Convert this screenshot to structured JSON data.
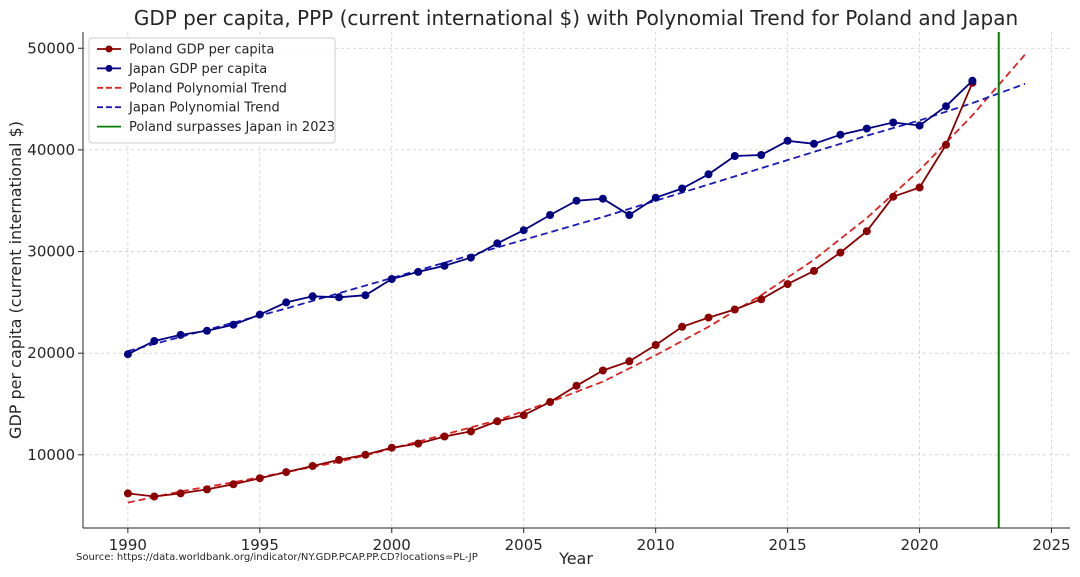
{
  "chart_data": {
    "type": "line",
    "title": "GDP per capita, PPP (current international $) with Polynomial Trend for Poland and Japan",
    "xlabel": "Year",
    "ylabel": "GDP per capita (current international $)",
    "xlim": [
      1988.3,
      2025.7
    ],
    "ylim": [
      2800,
      51600
    ],
    "xticks": [
      1990,
      1995,
      2000,
      2005,
      2010,
      2015,
      2020,
      2025
    ],
    "yticks": [
      10000,
      20000,
      30000,
      40000,
      50000
    ],
    "grid": true,
    "legend_position": "top-left",
    "source_note": "Source: https://data.worldbank.org/indicator/NY.GDP.PCAP.PP.CD?locations=PL-JP",
    "x": [
      1990,
      1991,
      1992,
      1993,
      1994,
      1995,
      1996,
      1997,
      1998,
      1999,
      2000,
      2001,
      2002,
      2003,
      2004,
      2005,
      2006,
      2007,
      2008,
      2009,
      2010,
      2011,
      2012,
      2013,
      2014,
      2015,
      2016,
      2017,
      2018,
      2019,
      2020,
      2021,
      2022
    ],
    "series": [
      {
        "name": "Poland GDP per capita",
        "color": "#8b0000",
        "style": "line-markers",
        "values": [
          6200,
          5900,
          6200,
          6600,
          7100,
          7700,
          8300,
          8900,
          9500,
          10000,
          10700,
          11100,
          11800,
          12300,
          13300,
          13900,
          15200,
          16800,
          18300,
          19200,
          20800,
          22600,
          23500,
          24300,
          25300,
          26800,
          28100,
          29900,
          32000,
          35400,
          36300,
          40500,
          46600
        ]
      },
      {
        "name": "Japan GDP per capita",
        "color": "#000080",
        "style": "line-markers",
        "values": [
          19900,
          21200,
          21800,
          22200,
          22800,
          23800,
          25000,
          25600,
          25500,
          25700,
          27300,
          28000,
          28600,
          29400,
          30800,
          32100,
          33600,
          35000,
          35200,
          33600,
          35300,
          36200,
          37600,
          39400,
          39500,
          40900,
          40600,
          41500,
          42100,
          42700,
          42400,
          44300,
          46800
        ]
      }
    ],
    "trends": [
      {
        "name": "Poland Polynomial Trend",
        "color": "#dd2222",
        "style": "dashed",
        "x": [
          1990,
          1992,
          1994,
          1996,
          1998,
          2000,
          2002,
          2004,
          2006,
          2008,
          2010,
          2012,
          2014,
          2016,
          2018,
          2020,
          2022,
          2024
        ],
        "values": [
          5300,
          6400,
          7300,
          8300,
          9300,
          10600,
          12000,
          13400,
          15200,
          17200,
          19800,
          22600,
          25700,
          29200,
          33300,
          38000,
          43400,
          49400
        ]
      },
      {
        "name": "Japan Polynomial Trend",
        "color": "#1a1ab8",
        "style": "dashed",
        "x": [
          1990,
          1992,
          1994,
          1996,
          1998,
          2000,
          2002,
          2004,
          2006,
          2008,
          2010,
          2012,
          2014,
          2016,
          2018,
          2020,
          2022,
          2024
        ],
        "values": [
          20200,
          21600,
          23000,
          24400,
          25900,
          27400,
          28900,
          30400,
          31900,
          33400,
          35000,
          36600,
          38200,
          39800,
          41400,
          42900,
          44600,
          46500
        ]
      }
    ],
    "annotations": [
      {
        "name": "Poland surpasses Japan in 2023",
        "type": "vline",
        "x": 2023,
        "color": "#008000"
      }
    ]
  }
}
